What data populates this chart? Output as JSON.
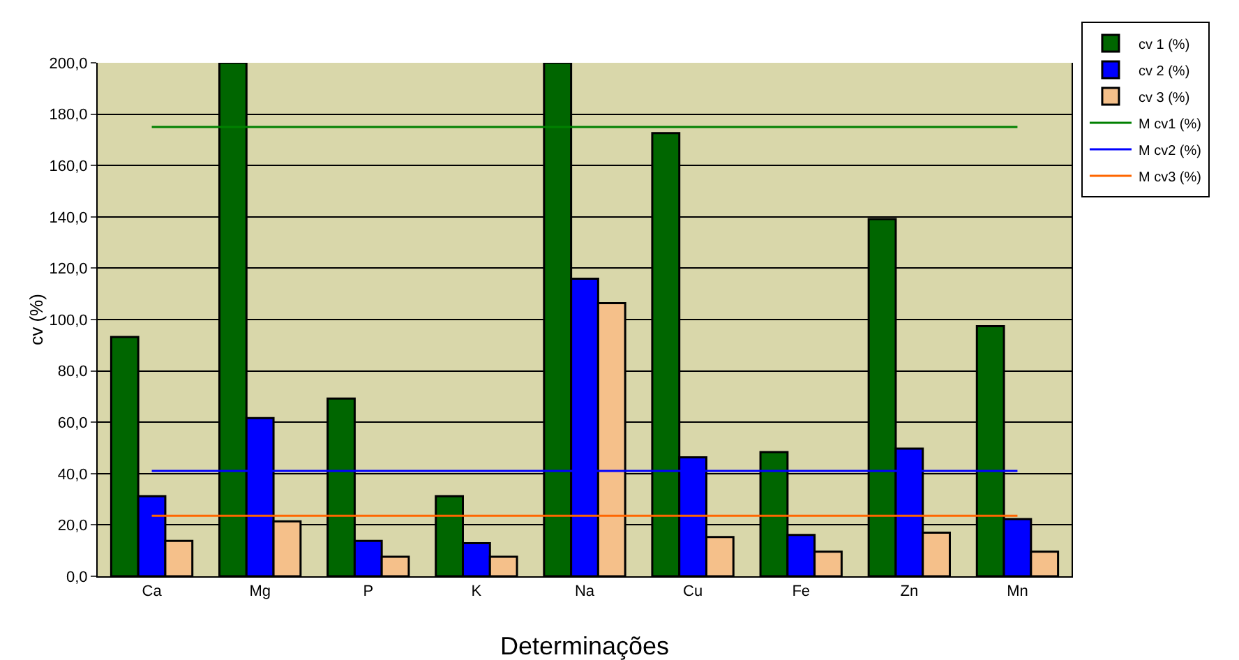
{
  "chart_data": {
    "type": "bar",
    "xlabel": "Determinações",
    "ylabel": "cv (%)",
    "categories": [
      "Ca",
      "Mg",
      "P",
      "K",
      "Na",
      "Cu",
      "Fe",
      "Zn",
      "Mn"
    ],
    "series": [
      {
        "name": "cv 1 (%)",
        "color": "#006600",
        "values": [
          93.2,
          200,
          69.2,
          31.2,
          200,
          172.6,
          48.4,
          139.1,
          97.4
        ]
      },
      {
        "name": "cv 2 (%)",
        "color": "#0000ff",
        "values": [
          31.2,
          61.6,
          13.8,
          12.9,
          115.9,
          46.3,
          16.1,
          49.7,
          22.3
        ]
      },
      {
        "name": "cv 3 (%)",
        "color": "#f5c08a",
        "values": [
          13.8,
          21.4,
          7.6,
          7.6,
          106.4,
          15.3,
          9.6,
          17.0,
          9.6
        ]
      },
      {
        "name": "M cv1 (%)",
        "type": "line",
        "color": "#008000",
        "values": [
          175,
          175,
          175,
          175,
          175,
          175,
          175,
          175,
          175
        ]
      },
      {
        "name": "M cv2 (%)",
        "type": "line",
        "color": "#0000ff",
        "values": [
          41,
          41,
          41,
          41,
          41,
          41,
          41,
          41,
          41
        ]
      },
      {
        "name": "M cv3 (%)",
        "type": "line",
        "color": "#ff6600",
        "values": [
          23.6,
          23.6,
          23.6,
          23.6,
          23.6,
          23.6,
          23.6,
          23.6,
          23.6
        ]
      }
    ],
    "ylim": [
      0,
      200
    ],
    "yticks": [
      {
        "value": 0,
        "label": "0,0"
      },
      {
        "value": 20,
        "label": "20,0"
      },
      {
        "value": 40,
        "label": "40,0"
      },
      {
        "value": 60,
        "label": "60,0"
      },
      {
        "value": 80,
        "label": "80,0"
      },
      {
        "value": 100,
        "label": "100,0"
      },
      {
        "value": 120,
        "label": "120,0"
      },
      {
        "value": 140,
        "label": "140,0"
      },
      {
        "value": 160,
        "label": "160,0"
      },
      {
        "value": 180,
        "label": "180,0"
      },
      {
        "value": 200,
        "label": "200,0"
      }
    ],
    "grid": "y",
    "legend": "top right",
    "marker": "none",
    "line_style": "solid"
  }
}
